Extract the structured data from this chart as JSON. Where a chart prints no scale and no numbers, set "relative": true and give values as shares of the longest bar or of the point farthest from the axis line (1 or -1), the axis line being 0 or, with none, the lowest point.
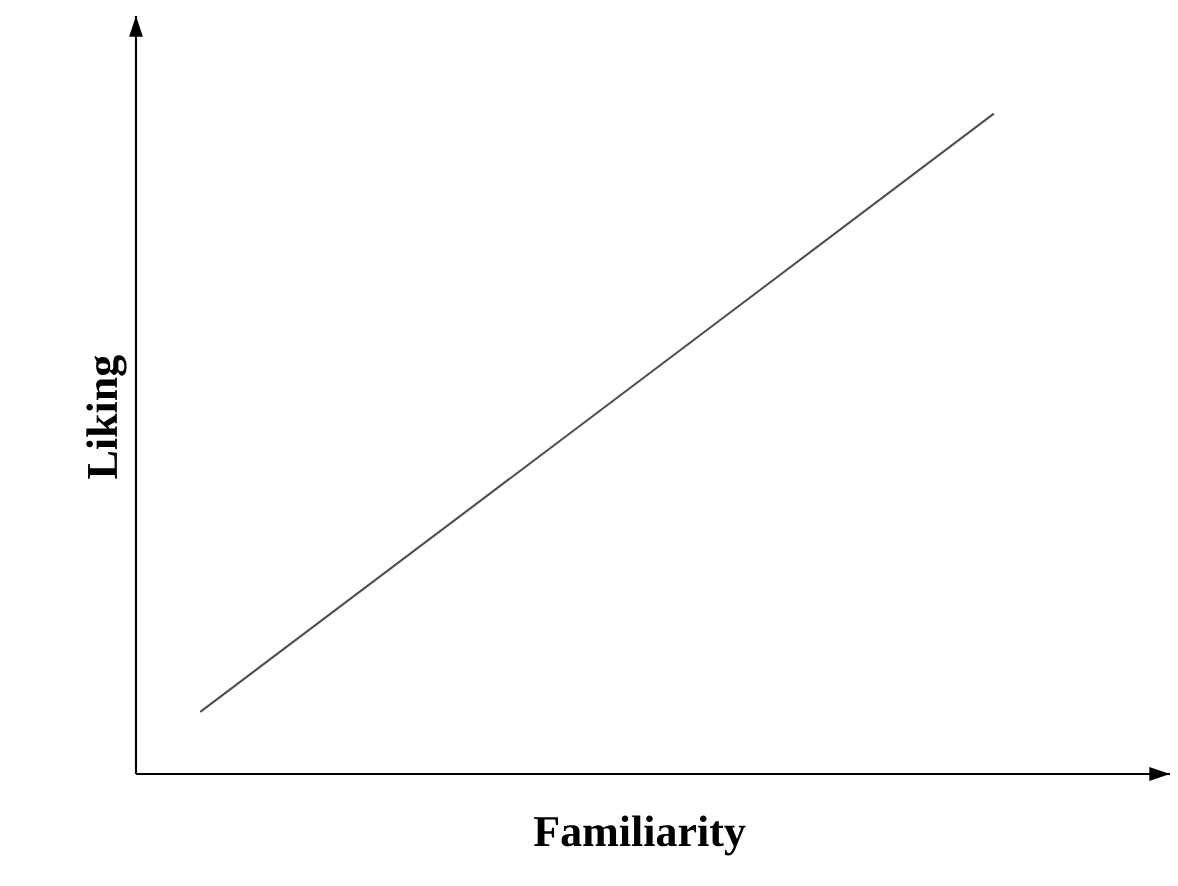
{
  "chart_data": {
    "type": "line",
    "xlabel": "Familiarity",
    "ylabel": "Liking",
    "relative": true,
    "categories": [
      null,
      null
    ],
    "values": [
      0.094,
      1
    ],
    "color": "#505050"
  }
}
